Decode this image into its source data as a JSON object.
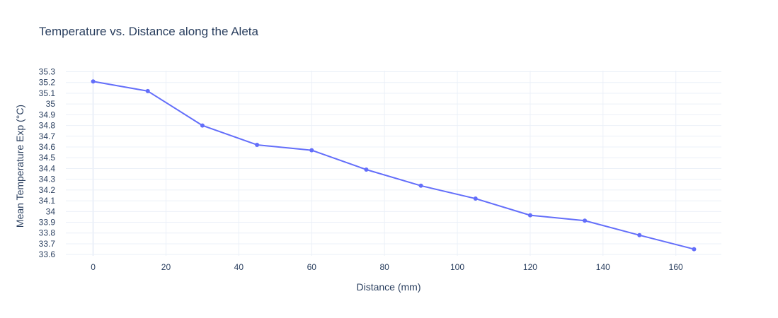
{
  "chart_data": {
    "type": "line",
    "title": "Temperature vs. Distance along the Aleta",
    "xlabel": "Distance (mm)",
    "ylabel": "Mean Temperature Exp (°C)",
    "xlim": [
      -7.5,
      172.5
    ],
    "ylim": [
      33.588,
      35.31
    ],
    "xticks": [
      0,
      20,
      40,
      60,
      80,
      100,
      120,
      140,
      160
    ],
    "xtick_labels": [
      "0",
      "20",
      "40",
      "60",
      "80",
      "100",
      "120",
      "140",
      "160"
    ],
    "yticks": [
      33.6,
      33.7,
      33.8,
      33.9,
      34.0,
      34.1,
      34.2,
      34.3,
      34.4,
      34.5,
      34.6,
      34.7,
      34.8,
      34.9,
      35.0,
      35.1,
      35.2,
      35.3
    ],
    "ytick_labels": [
      "33.6",
      "33.7",
      "33.8",
      "33.9",
      "34",
      "34.1",
      "34.2",
      "34.3",
      "34.4",
      "34.5",
      "34.6",
      "34.7",
      "34.8",
      "34.9",
      "35",
      "35.1",
      "35.2",
      "35.3"
    ],
    "grid": true,
    "series": [
      {
        "x": [
          0,
          15,
          30,
          45,
          60,
          75,
          90,
          105,
          120,
          135,
          150,
          165
        ],
        "y": [
          35.21,
          35.12,
          34.8,
          34.62,
          34.57,
          34.39,
          34.24,
          34.12,
          33.965,
          33.915,
          33.78,
          33.65
        ],
        "color": "#636efa",
        "mode": "lines+markers"
      }
    ]
  }
}
